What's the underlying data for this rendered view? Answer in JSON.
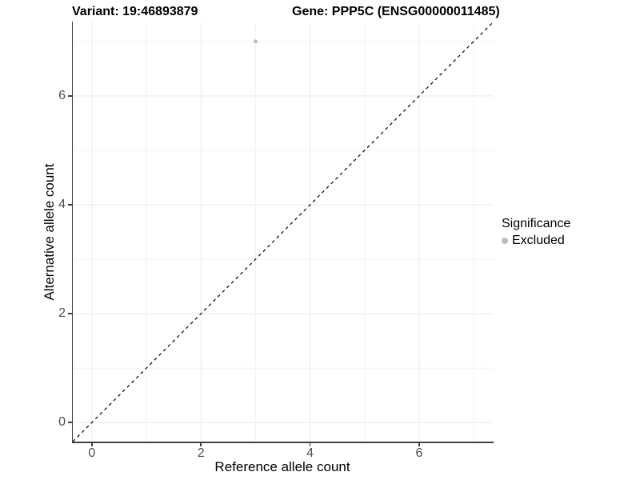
{
  "titles": {
    "variant": "Variant: 19:46893879",
    "gene": "Gene: PPP5C (ENSG00000011485)"
  },
  "axes": {
    "x": {
      "label": "Reference allele count"
    },
    "y": {
      "label": "Alternative allele count"
    }
  },
  "legend": {
    "title": "Significance",
    "items": [
      {
        "label": "Excluded",
        "color": "#bdbdbd"
      }
    ]
  },
  "colors": {
    "grid_major": "#e9e9e9",
    "grid_minor": "#f1f1f1",
    "axis_line": "#404040",
    "tick_label": "#4d4d4d",
    "identity_line": "#000000",
    "point_excluded": "#bdbdbd"
  },
  "chart_data": {
    "type": "scatter",
    "title": "Variant: 19:46893879 | Gene: PPP5C (ENSG00000011485)",
    "xlabel": "Reference allele count",
    "ylabel": "Alternative allele count",
    "xlim": [
      -0.35,
      7.35
    ],
    "ylim": [
      -0.35,
      7.35
    ],
    "x_ticks": [
      0,
      2,
      4,
      6
    ],
    "y_ticks": [
      0,
      2,
      4,
      6
    ],
    "x_minor_ticks": [
      1,
      3,
      5,
      7
    ],
    "y_minor_ticks": [
      1,
      3,
      5,
      7
    ],
    "grid": "on",
    "legend_position": "right",
    "series": [
      {
        "name": "Excluded",
        "color": "#bdbdbd",
        "point_radius": 2.5,
        "points": [
          {
            "x": 3,
            "y": 7
          }
        ]
      }
    ],
    "identity_line": {
      "style": "dashed",
      "color": "#000000",
      "from": [
        -0.35,
        -0.35
      ],
      "to": [
        7.35,
        7.35
      ]
    }
  }
}
